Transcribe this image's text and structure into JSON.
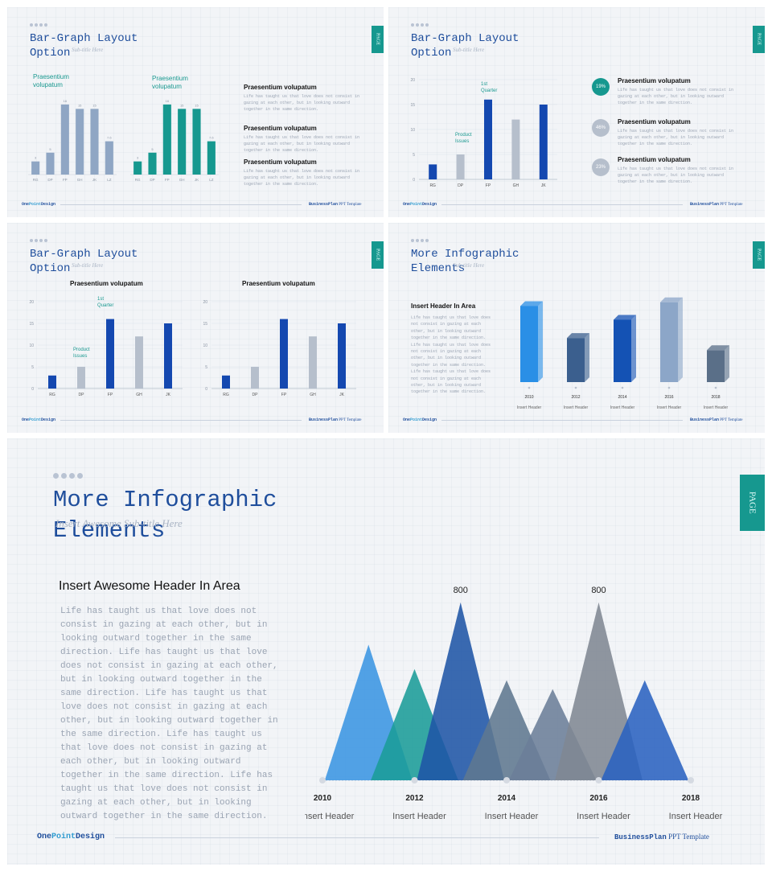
{
  "slide1": {
    "title": "Bar-Graph Layout\nOption",
    "subtitle": "Sub-title Here",
    "page_tab": "PAGE",
    "chart_left_label": "Praesentium\nvolupatum",
    "chart_right_label": "Praesentium\nvolupatum",
    "items": [
      {
        "heading": "Praesentium volupatum",
        "text": "Life has taught us that love does not consist in gazing at each other, but in looking outward together in the same direction."
      },
      {
        "heading": "Praesentium volupatum",
        "text": "Life has taught us that love does not consist in gazing at each other, but in looking outward together in the same direction."
      },
      {
        "heading": "Praesentium volupatum",
        "text": "Life has taught us that love does not consist in gazing at each other, but in looking outward together in the same direction."
      }
    ],
    "footer_brand_a": "One",
    "footer_brand_b": "Point",
    "footer_brand_c": "Design",
    "footer_tpl_a": "BusinessPlan",
    "footer_tpl_b": " PPT Template"
  },
  "slide2": {
    "title": "Bar-Graph Layout\nOption",
    "subtitle": "Sub-title Here",
    "page_tab": "PAGE",
    "annot_quarter": "1st\nQuarter",
    "annot_product": "Product\nIssues",
    "items": [
      {
        "pct": "19%",
        "heading": "Praesentium volupatum",
        "text": "Life has taught us that love does not consist in gazing at each other, but in looking outward together in the same direction.",
        "color": "#16988f"
      },
      {
        "pct": "46%",
        "heading": "Praesentium volupatum",
        "text": "Life has taught us that love does not consist in gazing at each other, but in looking outward together in the same direction.",
        "color": "#b6bfcc"
      },
      {
        "pct": "23%",
        "heading": "Praesentium volupatum",
        "text": "Life has taught us that love does not consist in gazing at each other, but in looking outward together in the same direction.",
        "color": "#b6bfcc"
      }
    ],
    "footer_brand_a": "One",
    "footer_brand_b": "Point",
    "footer_brand_c": "Design",
    "footer_tpl_a": "BusinessPlan",
    "footer_tpl_b": " PPT Template"
  },
  "slide3": {
    "title": "Bar-Graph Layout\nOption",
    "subtitle": "Sub-title Here",
    "page_tab": "PAGE",
    "chart_left_heading": "Praesentium volupatum",
    "chart_right_heading": "Praesentium volupatum",
    "annot_quarter": "1st\nQuarter",
    "annot_product": "Product\nIssues",
    "footer_brand_a": "One",
    "footer_brand_b": "Point",
    "footer_brand_c": "Design",
    "footer_tpl_a": "BusinessPlan",
    "footer_tpl_b": " PPT Template"
  },
  "slide4": {
    "title": "More Infographic\nElements",
    "subtitle": "Sub-title Here",
    "page_tab": "PAGE",
    "heading": "Insert Header In Area",
    "text": "Life has taught us that love does not consist in gazing at each other, but in looking outward together in the same direction. Life has taught us that love does not consist in gazing at each other, but in looking outward together in the same direction. Life has taught us that love does not consist in gazing at each other, but in looking outward together in the same direction.",
    "footer_brand_a": "One",
    "footer_brand_b": "Point",
    "footer_brand_c": "Design",
    "footer_tpl_a": "BusinessPlan",
    "footer_tpl_b": " PPT Template"
  },
  "slide5": {
    "title": "More Infographic\nElements",
    "subtitle": "Insert Awesome Sub-title Here",
    "page_tab": "PAGE",
    "heading": "Insert Awesome Header In Area",
    "text": "Life has taught us that love does not consist in gazing at each other, but in looking outward together in the same direction. Life has taught us that love does not consist in gazing at each other, but in looking outward together in the same direction. Life has taught us that love does not consist in gazing at each other, but in looking outward together in the same direction. Life has taught us that love does not consist in gazing at each other, but in looking outward together in the same direction. Life has taught us that love does not consist in gazing at each other, but in looking outward together in the same direction.",
    "footer_brand_a": "One",
    "footer_brand_b": "Point",
    "footer_brand_c": "Design",
    "footer_tpl_a": "BusinessPlan",
    "footer_tpl_b": " PPT Template"
  },
  "chart_data": [
    {
      "type": "bar",
      "categories": [
        "RG",
        "DP",
        "FP",
        "GH",
        "JK",
        "LZ"
      ],
      "values": [
        3,
        5,
        16,
        15,
        15,
        7.6
      ],
      "ylim": [
        0,
        18
      ],
      "color": "#8fa6c4"
    },
    {
      "type": "bar",
      "categories": [
        "RG",
        "DP",
        "FP",
        "GH",
        "JK",
        "LZ"
      ],
      "values": [
        3,
        5,
        16,
        15,
        15,
        7.6
      ],
      "ylim": [
        0,
        18
      ],
      "color": "#16988f"
    },
    {
      "type": "bar",
      "categories": [
        "RG",
        "DP",
        "FP",
        "GH",
        "JK"
      ],
      "values": [
        3,
        5,
        16,
        12,
        15
      ],
      "ylim": [
        0,
        20
      ],
      "yticks": [
        0,
        5,
        10,
        15,
        20
      ],
      "colors": [
        "#1448b0",
        "#b6bfcc",
        "#1448b0",
        "#b6bfcc",
        "#1448b0"
      ]
    },
    {
      "type": "bar",
      "title": "Praesentium volupatum",
      "categories": [
        "RG",
        "DP",
        "FP",
        "GH",
        "JK"
      ],
      "values": [
        3,
        5,
        16,
        12,
        15
      ],
      "ylim": [
        0,
        20
      ],
      "yticks": [
        0,
        5,
        10,
        15,
        20
      ],
      "colors": [
        "#1448b0",
        "#b6bfcc",
        "#1448b0",
        "#b6bfcc",
        "#1448b0"
      ]
    },
    {
      "type": "bar",
      "title": "Praesentium volupatum",
      "categories": [
        "RG",
        "DP",
        "FP",
        "GH",
        "JK"
      ],
      "values": [
        3,
        5,
        16,
        12,
        15
      ],
      "ylim": [
        0,
        20
      ],
      "yticks": [
        0,
        5,
        10,
        15,
        20
      ],
      "colors": [
        "#1448b0",
        "#b6bfcc",
        "#1448b0",
        "#b6bfcc",
        "#1448b0"
      ]
    },
    {
      "type": "bar",
      "categories": [
        "2010",
        "2012",
        "2014",
        "2016",
        "2018"
      ],
      "sublabels": [
        "Insert Header",
        "Insert Header",
        "Insert Header",
        "Insert Header",
        "Insert Header"
      ],
      "values": [
        100,
        58,
        82,
        105,
        42
      ],
      "ylim": [
        0,
        110
      ],
      "colors": [
        "#2a8fe6",
        "#3b5f8e",
        "#1452b4",
        "#8ca6c8",
        "#5a6f88"
      ]
    },
    {
      "type": "area",
      "categories": [
        "2010",
        "2012",
        "2014",
        "2016",
        "2018"
      ],
      "sublabels": [
        "Insert Header",
        "Insert Header",
        "Insert Header",
        "Insert Header",
        "Insert Header"
      ],
      "peaks": [
        {
          "value": 610,
          "color": "#3a95e2"
        },
        {
          "value": 500,
          "color": "#1a9c98"
        },
        {
          "value": 800,
          "color": "#1f55a6",
          "label": "800"
        },
        {
          "value": 450,
          "color": "#5f7790"
        },
        {
          "value": 410,
          "color": "#6b7e98"
        },
        {
          "value": 800,
          "color": "#7f8893",
          "label": "800"
        },
        {
          "value": 450,
          "color": "#2a62c0"
        }
      ],
      "ylim": [
        0,
        850
      ]
    }
  ]
}
